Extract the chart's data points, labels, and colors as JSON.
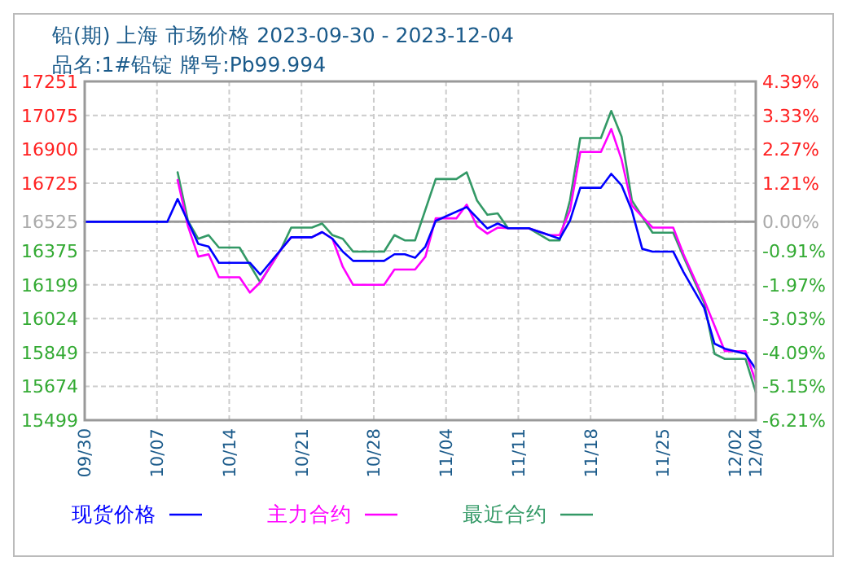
{
  "chart_data": {
    "type": "line",
    "title": "铅(期) 上海 市场价格 2023-09-30 - 2023-12-04",
    "subtitle": "品名:1#铅锭 牌号:Pb99.994",
    "xlim": [
      "2023-09-30",
      "2023-12-04"
    ],
    "xticks": [
      {
        "value": "2023-09-30",
        "label": "09/30"
      },
      {
        "value": "2023-10-07",
        "label": "10/07"
      },
      {
        "value": "2023-10-14",
        "label": "10/14"
      },
      {
        "value": "2023-10-21",
        "label": "10/21"
      },
      {
        "value": "2023-10-28",
        "label": "10/28"
      },
      {
        "value": "2023-11-04",
        "label": "11/04"
      },
      {
        "value": "2023-11-11",
        "label": "11/11"
      },
      {
        "value": "2023-11-18",
        "label": "11/18"
      },
      {
        "value": "2023-11-25",
        "label": "11/25"
      },
      {
        "value": "2023-12-02",
        "label": "12/02"
      },
      {
        "value": "2023-12-04",
        "label": "12/04"
      }
    ],
    "ylim": [
      15499,
      17251
    ],
    "yticks": [
      15499,
      15674,
      15849,
      16024,
      16199,
      16375,
      16525,
      16725,
      16900,
      17075,
      17251
    ],
    "y2lim": [
      -6.21,
      4.39
    ],
    "y2ticks": [
      {
        "value": -6.21,
        "label": "-6.21%"
      },
      {
        "value": -5.15,
        "label": "-5.15%"
      },
      {
        "value": -4.09,
        "label": "-4.09%"
      },
      {
        "value": -3.03,
        "label": "-3.03%"
      },
      {
        "value": -1.97,
        "label": "-1.97%"
      },
      {
        "value": -0.91,
        "label": "-0.91%"
      },
      {
        "value": 0,
        "label": "0.00%"
      },
      {
        "value": 1.21,
        "label": "1.21%"
      },
      {
        "value": 2.27,
        "label": "2.27%"
      },
      {
        "value": 3.33,
        "label": "3.33%"
      },
      {
        "value": 4.39,
        "label": "4.39%"
      }
    ],
    "ref_lines": [
      {
        "axis": "y2",
        "value": 0,
        "color": "#999999"
      }
    ],
    "grid": true,
    "legend": "bottom",
    "marker": "none",
    "line_style": "solid",
    "series": [
      {
        "name": "现货价格",
        "color": "#0000ff",
        "x": [
          "2023-09-30",
          "2023-10-08",
          "2023-10-09",
          "2023-10-11",
          "2023-10-12",
          "2023-10-13",
          "2023-10-16",
          "2023-10-17",
          "2023-10-19",
          "2023-10-20",
          "2023-10-22",
          "2023-10-23",
          "2023-10-24",
          "2023-10-25",
          "2023-10-26",
          "2023-10-29",
          "2023-10-30",
          "2023-10-31",
          "2023-11-01",
          "2023-11-02",
          "2023-11-03",
          "2023-11-06",
          "2023-11-08",
          "2023-11-09",
          "2023-11-10",
          "2023-11-12",
          "2023-11-14",
          "2023-11-15",
          "2023-11-16",
          "2023-11-17",
          "2023-11-19",
          "2023-11-20",
          "2023-11-21",
          "2023-11-22",
          "2023-11-23",
          "2023-11-24",
          "2023-11-26",
          "2023-11-27",
          "2023-11-29",
          "2023-11-30",
          "2023-12-01",
          "2023-12-03",
          "2023-12-04"
        ],
        "values": [
          16525,
          16525,
          16643,
          16411,
          16397,
          16313,
          16313,
          16252,
          16381,
          16445,
          16445,
          16472,
          16437,
          16371,
          16323,
          16323,
          16357,
          16357,
          16339,
          16397,
          16530,
          16601,
          16490,
          16516,
          16492,
          16492,
          16456,
          16437,
          16530,
          16701,
          16701,
          16773,
          16714,
          16583,
          16385,
          16371,
          16371,
          16265,
          16080,
          15895,
          15869,
          15842,
          15763
        ]
      },
      {
        "name": "主力合约",
        "color": "#ff00ff",
        "x": [
          "2023-10-09",
          "2023-10-10",
          "2023-10-11",
          "2023-10-12",
          "2023-10-13",
          "2023-10-15",
          "2023-10-16",
          "2023-10-17",
          "2023-10-19",
          "2023-10-20",
          "2023-10-22",
          "2023-10-23",
          "2023-10-24",
          "2023-10-25",
          "2023-10-26",
          "2023-10-29",
          "2023-10-30",
          "2023-11-01",
          "2023-11-02",
          "2023-11-03",
          "2023-11-05",
          "2023-11-06",
          "2023-11-07",
          "2023-11-08",
          "2023-11-09",
          "2023-11-10",
          "2023-11-12",
          "2023-11-14",
          "2023-11-15",
          "2023-11-16",
          "2023-11-17",
          "2023-11-19",
          "2023-11-20",
          "2023-11-21",
          "2023-11-22",
          "2023-11-24",
          "2023-11-26",
          "2023-11-27",
          "2023-11-29",
          "2023-12-01",
          "2023-12-03",
          "2023-12-04"
        ],
        "values": [
          16741,
          16503,
          16345,
          16357,
          16238,
          16238,
          16159,
          16212,
          16381,
          16445,
          16445,
          16472,
          16437,
          16292,
          16199,
          16199,
          16278,
          16278,
          16345,
          16543,
          16543,
          16614,
          16503,
          16464,
          16495,
          16492,
          16492,
          16456,
          16456,
          16583,
          16886,
          16886,
          17005,
          16847,
          16609,
          16495,
          16495,
          16357,
          16120,
          15856,
          15856,
          15697
        ]
      },
      {
        "name": "最近合约",
        "color": "#339966",
        "x": [
          "2023-10-09",
          "2023-10-10",
          "2023-10-11",
          "2023-10-12",
          "2023-10-13",
          "2023-10-15",
          "2023-10-17",
          "2023-10-19",
          "2023-10-20",
          "2023-10-22",
          "2023-10-23",
          "2023-10-24",
          "2023-10-25",
          "2023-10-26",
          "2023-10-29",
          "2023-10-30",
          "2023-10-31",
          "2023-11-01",
          "2023-11-03",
          "2023-11-05",
          "2023-11-06",
          "2023-11-07",
          "2023-11-08",
          "2023-11-09",
          "2023-11-10",
          "2023-11-12",
          "2023-11-14",
          "2023-11-15",
          "2023-11-16",
          "2023-11-17",
          "2023-11-19",
          "2023-11-20",
          "2023-11-21",
          "2023-11-22",
          "2023-11-24",
          "2023-11-26",
          "2023-11-27",
          "2023-11-29",
          "2023-11-30",
          "2023-12-01",
          "2023-12-03",
          "2023-12-04"
        ],
        "values": [
          16781,
          16530,
          16437,
          16456,
          16392,
          16392,
          16212,
          16381,
          16495,
          16495,
          16516,
          16456,
          16437,
          16371,
          16371,
          16456,
          16429,
          16429,
          16746,
          16746,
          16781,
          16635,
          16561,
          16569,
          16492,
          16492,
          16429,
          16429,
          16635,
          16958,
          16958,
          17098,
          16966,
          16635,
          16469,
          16469,
          16345,
          16107,
          15842,
          15816,
          15816,
          15644
        ]
      }
    ]
  }
}
